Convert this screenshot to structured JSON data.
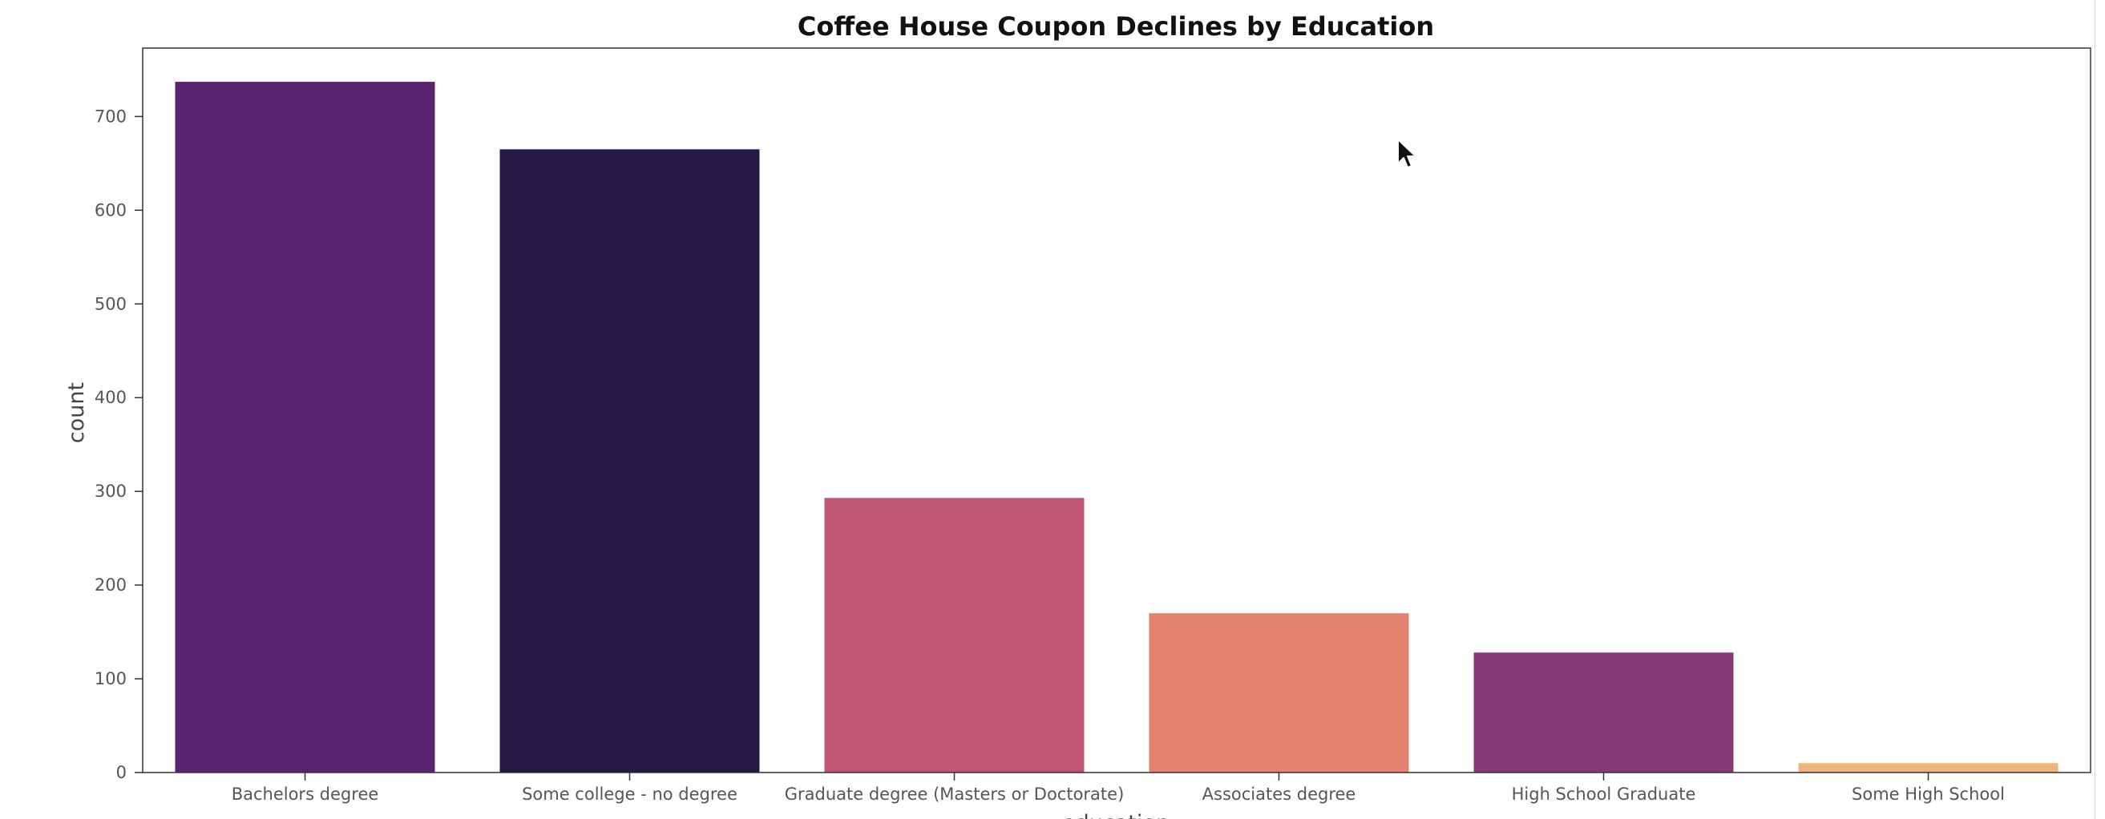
{
  "chart_data": {
    "type": "bar",
    "title": "Coffee House Coupon Declines by Education",
    "xlabel": "education",
    "ylabel": "count",
    "categories": [
      "Bachelors degree",
      "Some college - no degree",
      "Graduate degree (Masters or Doctorate)",
      "Associates degree",
      "High School Graduate",
      "Some High School"
    ],
    "values": [
      737,
      665,
      293,
      170,
      128,
      10
    ],
    "colors": [
      "#5b236f",
      "#251845",
      "#c05574",
      "#e48270",
      "#883878",
      "#edb57e"
    ],
    "ylim": [
      0,
      773
    ],
    "yticks": [
      0,
      100,
      200,
      300,
      400,
      500,
      600,
      700
    ],
    "grid": false,
    "legend": "none"
  },
  "icons": {
    "cursor": "mouse-pointer-icon"
  }
}
